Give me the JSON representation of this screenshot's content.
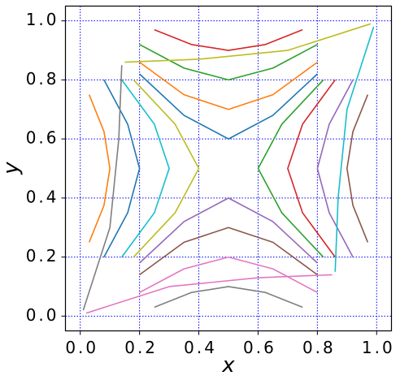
{
  "chart_data": {
    "type": "line",
    "x_label": "x",
    "y_label": "y",
    "xlim": [
      -0.05,
      1.05
    ],
    "ylim": [
      -0.05,
      1.05
    ],
    "xticks": [
      {
        "value": 0,
        "label": "0.0"
      },
      {
        "value": 0.2,
        "label": "0.2"
      },
      {
        "value": 0.4,
        "label": "0.4"
      },
      {
        "value": 0.6,
        "label": "0.6"
      },
      {
        "value": 0.8,
        "label": "0.8"
      },
      {
        "value": 1,
        "label": "1.0"
      }
    ],
    "yticks": [
      {
        "value": 0,
        "label": "0.0"
      },
      {
        "value": 0.2,
        "label": "0.2"
      },
      {
        "value": 0.4,
        "label": "0.4"
      },
      {
        "value": 0.6,
        "label": "0.6"
      },
      {
        "value": 0.8,
        "label": "0.8"
      },
      {
        "value": 1,
        "label": "1.0"
      }
    ],
    "grid": true,
    "grid_color": "#0000ff",
    "series": [
      {
        "color": "#1f77b4",
        "x": [
          0.2,
          0.35,
          0.5,
          0.65,
          0.8
        ],
        "values": [
          0.82,
          0.68,
          0.6,
          0.68,
          0.82
        ]
      },
      {
        "color": "#ff7f0e",
        "x": [
          0.2,
          0.35,
          0.5,
          0.65,
          0.8
        ],
        "values": [
          0.86,
          0.75,
          0.7,
          0.75,
          0.86
        ]
      },
      {
        "color": "#2ca02c",
        "x": [
          0.2,
          0.35,
          0.5,
          0.65,
          0.8
        ],
        "values": [
          0.92,
          0.84,
          0.8,
          0.84,
          0.92
        ]
      },
      {
        "color": "#d62728",
        "x": [
          0.25,
          0.375,
          0.5,
          0.625,
          0.75
        ],
        "values": [
          0.97,
          0.92,
          0.9,
          0.92,
          0.97
        ]
      },
      {
        "color": "#9467bd",
        "x": [
          0.2,
          0.35,
          0.5,
          0.65,
          0.8
        ],
        "values": [
          0.18,
          0.32,
          0.4,
          0.32,
          0.18
        ]
      },
      {
        "color": "#8c564b",
        "x": [
          0.2,
          0.35,
          0.5,
          0.65,
          0.8
        ],
        "values": [
          0.14,
          0.25,
          0.3,
          0.25,
          0.14
        ]
      },
      {
        "color": "#e377c2",
        "x": [
          0.2,
          0.35,
          0.5,
          0.65,
          0.8
        ],
        "values": [
          0.08,
          0.16,
          0.2,
          0.16,
          0.08
        ]
      },
      {
        "color": "#7f7f7f",
        "x": [
          0.25,
          0.375,
          0.5,
          0.625,
          0.75
        ],
        "values": [
          0.03,
          0.08,
          0.1,
          0.08,
          0.03
        ]
      },
      {
        "color": "#bcbd22",
        "x": [
          0.18,
          0.32,
          0.4,
          0.32,
          0.18
        ],
        "values": [
          0.2,
          0.35,
          0.5,
          0.65,
          0.8
        ]
      },
      {
        "color": "#17becf",
        "x": [
          0.14,
          0.25,
          0.3,
          0.25,
          0.14
        ],
        "values": [
          0.2,
          0.35,
          0.5,
          0.65,
          0.8
        ]
      },
      {
        "color": "#1f77b4",
        "x": [
          0.08,
          0.16,
          0.2,
          0.16,
          0.08
        ],
        "values": [
          0.2,
          0.35,
          0.5,
          0.65,
          0.8
        ]
      },
      {
        "color": "#ff7f0e",
        "x": [
          0.03,
          0.08,
          0.1,
          0.08,
          0.03
        ],
        "values": [
          0.25,
          0.375,
          0.5,
          0.625,
          0.75
        ]
      },
      {
        "color": "#2ca02c",
        "x": [
          0.82,
          0.68,
          0.6,
          0.68,
          0.82
        ],
        "values": [
          0.2,
          0.35,
          0.5,
          0.65,
          0.8
        ]
      },
      {
        "color": "#d62728",
        "x": [
          0.86,
          0.75,
          0.7,
          0.75,
          0.86
        ],
        "values": [
          0.2,
          0.35,
          0.5,
          0.65,
          0.8
        ]
      },
      {
        "color": "#9467bd",
        "x": [
          0.92,
          0.84,
          0.8,
          0.84,
          0.92
        ],
        "values": [
          0.2,
          0.35,
          0.5,
          0.65,
          0.8
        ]
      },
      {
        "color": "#8c564b",
        "x": [
          0.97,
          0.92,
          0.9,
          0.92,
          0.97
        ],
        "values": [
          0.25,
          0.375,
          0.5,
          0.625,
          0.75
        ]
      },
      {
        "color": "#e377c2",
        "x": [
          0.02,
          0.3,
          0.6,
          0.85
        ],
        "values": [
          0.01,
          0.1,
          0.13,
          0.14
        ]
      },
      {
        "color": "#7f7f7f",
        "x": [
          0.01,
          0.1,
          0.13,
          0.14
        ],
        "values": [
          0.02,
          0.3,
          0.6,
          0.85
        ]
      },
      {
        "color": "#bcbd22",
        "x": [
          0.15,
          0.4,
          0.7,
          0.98
        ],
        "values": [
          0.86,
          0.87,
          0.9,
          0.99
        ]
      },
      {
        "color": "#17becf",
        "x": [
          0.86,
          0.87,
          0.9,
          0.99
        ],
        "values": [
          0.15,
          0.4,
          0.7,
          0.98
        ]
      }
    ]
  }
}
